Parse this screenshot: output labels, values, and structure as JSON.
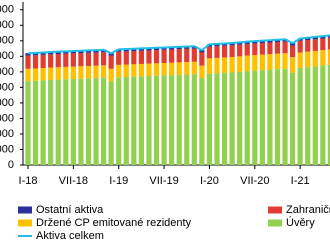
{
  "chart_data": {
    "type": "stacked-bar-line",
    "categories": [
      "I-18",
      null,
      null,
      null,
      null,
      null,
      "VII-18",
      null,
      null,
      null,
      null,
      null,
      "I-19",
      null,
      null,
      null,
      null,
      null,
      "VII-19",
      null,
      null,
      null,
      null,
      null,
      "I-20",
      null,
      null,
      null,
      null,
      null,
      "VII-20",
      null,
      null,
      null,
      null,
      null,
      "I-21",
      null,
      null,
      null,
      null
    ],
    "ylim": [
      0,
      10500
    ],
    "yticks": [
      0,
      1000,
      2000,
      3000,
      4000,
      5000,
      6000,
      7000,
      8000,
      9000,
      10000
    ],
    "series": [
      {
        "name": "Úvěry",
        "color": "#92d050",
        "values": [
          5400,
          5420,
          5450,
          5480,
          5500,
          5520,
          5540,
          5560,
          5580,
          5600,
          5620,
          5400,
          5650,
          5670,
          5690,
          5710,
          5730,
          5750,
          5770,
          5790,
          5810,
          5830,
          5850,
          5600,
          5870,
          5900,
          5930,
          5960,
          6000,
          6050,
          6080,
          6110,
          6140,
          6170,
          6200,
          5950,
          6250,
          6300,
          6350,
          6400,
          6450
        ]
      },
      {
        "name": "Držené CP emitované rezidenty",
        "color": "#ffc000",
        "values": [
          800,
          800,
          800,
          800,
          800,
          800,
          800,
          800,
          800,
          800,
          800,
          800,
          800,
          800,
          800,
          800,
          800,
          800,
          800,
          800,
          800,
          800,
          800,
          800,
          1000,
          1000,
          1000,
          1000,
          1000,
          1000,
          1000,
          1000,
          1000,
          1000,
          1000,
          1000,
          1000,
          1000,
          1000,
          1000,
          1000
        ]
      },
      {
        "name": "Zahraniční aktiva",
        "color": "#e03c31",
        "values": [
          850,
          850,
          850,
          850,
          850,
          850,
          850,
          850,
          850,
          850,
          850,
          850,
          850,
          850,
          850,
          850,
          850,
          850,
          850,
          850,
          850,
          850,
          850,
          850,
          750,
          750,
          750,
          750,
          750,
          750,
          750,
          750,
          750,
          750,
          750,
          750,
          750,
          750,
          750,
          750,
          750
        ]
      },
      {
        "name": "Ostatní aktiva",
        "color": "#2b2f9e",
        "values": [
          150,
          150,
          150,
          150,
          150,
          150,
          150,
          150,
          150,
          150,
          150,
          150,
          150,
          150,
          150,
          150,
          150,
          150,
          150,
          150,
          150,
          150,
          150,
          150,
          150,
          150,
          150,
          150,
          150,
          150,
          150,
          150,
          150,
          150,
          150,
          150,
          150,
          150,
          150,
          150,
          150
        ]
      },
      {
        "name": "Aktiva celkem",
        "color": "#20c0e8",
        "kind": "line",
        "values": [
          7200,
          7220,
          7250,
          7280,
          7300,
          7320,
          7340,
          7360,
          7380,
          7400,
          7420,
          7200,
          7450,
          7470,
          7490,
          7510,
          7530,
          7550,
          7570,
          7590,
          7610,
          7630,
          7650,
          7400,
          7770,
          7800,
          7830,
          7860,
          7900,
          7950,
          7980,
          8010,
          8040,
          8070,
          8100,
          7850,
          8150,
          8200,
          8250,
          8300,
          8350
        ]
      }
    ]
  }
}
